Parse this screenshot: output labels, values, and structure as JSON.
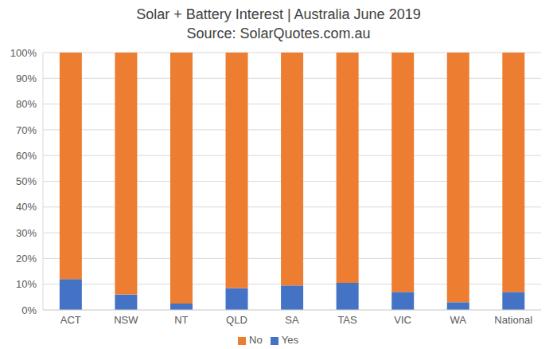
{
  "chart_data": {
    "type": "bar",
    "title": "Solar + Battery Interest | Australia June 2019",
    "subtitle": "Source: SolarQuotes.com.au",
    "categories": [
      "ACT",
      "NSW",
      "NT",
      "QLD",
      "SA",
      "TAS",
      "VIC",
      "WA",
      "National"
    ],
    "series": [
      {
        "name": "Yes",
        "color": "#4472c4",
        "values": [
          12,
          6,
          2.5,
          8.5,
          9.5,
          10.5,
          7,
          3,
          7
        ]
      },
      {
        "name": "No",
        "color": "#ed7d31",
        "values": [
          88,
          94,
          97.5,
          91.5,
          90.5,
          89.5,
          93,
          97,
          93
        ]
      }
    ],
    "stacked": true,
    "ylim": [
      0,
      100
    ],
    "yticks": [
      {
        "value": 0,
        "label": "0%"
      },
      {
        "value": 10,
        "label": "10%"
      },
      {
        "value": 20,
        "label": "20%"
      },
      {
        "value": 30,
        "label": "30%"
      },
      {
        "value": 40,
        "label": "40%"
      },
      {
        "value": 50,
        "label": "50%"
      },
      {
        "value": 60,
        "label": "60%"
      },
      {
        "value": 70,
        "label": "70%"
      },
      {
        "value": 80,
        "label": "80%"
      },
      {
        "value": 90,
        "label": "90%"
      },
      {
        "value": 100,
        "label": "100%"
      }
    ],
    "grid": true,
    "legend": "bottom"
  }
}
